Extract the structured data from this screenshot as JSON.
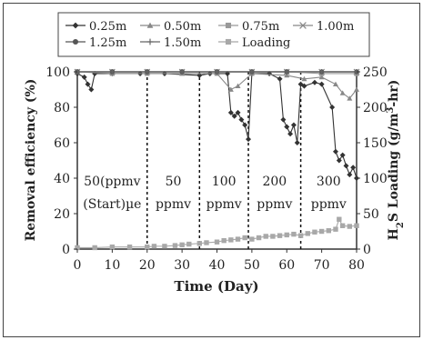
{
  "chart_data": {
    "type": "line",
    "xlabel": "Time (Day)",
    "ylabel_left": "Removal efficiency (%)",
    "ylabel_right": "H2S Loading (g/m3-hr)",
    "xlim": [
      0,
      80
    ],
    "ylim_left": [
      0,
      100
    ],
    "ylim_right": [
      0,
      250
    ],
    "x_ticks": [
      "0",
      "10",
      "20",
      "30",
      "40",
      "50",
      "60",
      "70",
      "80"
    ],
    "y_ticks_left": [
      "0",
      "20",
      "40",
      "60",
      "80",
      "100"
    ],
    "y_ticks_right": [
      "0",
      "50",
      "100",
      "150",
      "200",
      "250"
    ],
    "legend_position": "top",
    "grid": false,
    "phase_boundaries": [
      20,
      35,
      49,
      64
    ],
    "phase_labels": [
      {
        "x": 10,
        "lines": [
          "50(ppmv",
          "(Start)µe"
        ]
      },
      {
        "x": 27.5,
        "lines": [
          "50",
          "ppmv"
        ]
      },
      {
        "x": 42,
        "lines": [
          "100",
          "ppmv"
        ]
      },
      {
        "x": 56.5,
        "lines": [
          "200",
          "ppmv"
        ]
      },
      {
        "x": 72,
        "lines": [
          "300",
          "ppmv"
        ]
      }
    ],
    "series": [
      {
        "name": "0.25m",
        "marker": "diamond",
        "color": "#333333",
        "axis": "left",
        "x": [
          0,
          2,
          3,
          4,
          5,
          10,
          18,
          25,
          35,
          38,
          43,
          44,
          45,
          46,
          47,
          48,
          49,
          50,
          55,
          58,
          59,
          60,
          61,
          62,
          63,
          64,
          65,
          68,
          70,
          73,
          74,
          75,
          76,
          77,
          78,
          79,
          80
        ],
        "y": [
          99,
          97,
          93,
          90,
          99,
          99,
          99,
          99,
          98,
          99,
          99,
          77,
          75,
          77,
          73,
          70,
          62,
          99,
          99,
          96,
          73,
          69,
          65,
          70,
          60,
          93,
          92,
          94,
          93,
          80,
          55,
          50,
          53,
          47,
          42,
          46,
          40
        ]
      },
      {
        "name": "0.50m",
        "marker": "triangle",
        "color": "#888888",
        "axis": "left",
        "x": [
          0,
          10,
          20,
          30,
          40,
          44,
          46,
          50,
          60,
          65,
          70,
          74,
          76,
          78,
          80
        ],
        "y": [
          100,
          99,
          99,
          99,
          99,
          90,
          92,
          99,
          98,
          96,
          97,
          93,
          88,
          85,
          90
        ]
      },
      {
        "name": "0.75m",
        "marker": "square",
        "color": "#999999",
        "axis": "left",
        "x": [
          0,
          10,
          20,
          30,
          40,
          50,
          60,
          70,
          80
        ],
        "y": [
          100,
          100,
          100,
          100,
          100,
          100,
          100,
          99,
          99
        ]
      },
      {
        "name": "1.00m",
        "marker": "x",
        "color": "#888888",
        "axis": "left",
        "x": [
          0,
          10,
          20,
          30,
          40,
          50,
          60,
          70,
          80
        ],
        "y": [
          100,
          100,
          100,
          100,
          100,
          100,
          100,
          100,
          100
        ]
      },
      {
        "name": "1.25m",
        "marker": "circle",
        "color": "#555555",
        "axis": "left",
        "x": [
          0,
          10,
          20,
          30,
          40,
          50,
          60,
          70,
          80
        ],
        "y": [
          100,
          100,
          100,
          100,
          100,
          100,
          100,
          100,
          100
        ]
      },
      {
        "name": "1.50m",
        "marker": "plus",
        "color": "#666666",
        "axis": "left",
        "x": [
          0,
          10,
          20,
          30,
          40,
          50,
          60,
          70,
          80
        ],
        "y": [
          100,
          100,
          100,
          100,
          100,
          100,
          100,
          100,
          100
        ]
      },
      {
        "name": "Loading",
        "marker": "square",
        "color": "#a8a8a8",
        "axis": "right",
        "x": [
          0,
          5,
          10,
          15,
          20,
          22,
          25,
          28,
          30,
          32,
          35,
          37,
          40,
          42,
          44,
          46,
          48,
          50,
          52,
          54,
          56,
          58,
          60,
          62,
          64,
          66,
          68,
          70,
          72,
          74,
          75,
          76,
          78,
          80
        ],
        "y": [
          2,
          2,
          3,
          3,
          3,
          4,
          4,
          5,
          6,
          7,
          8,
          9,
          10,
          12,
          13,
          14,
          16,
          14,
          16,
          18,
          18,
          19,
          20,
          21,
          19,
          22,
          24,
          25,
          26,
          28,
          42,
          33,
          32,
          33
        ]
      }
    ]
  }
}
